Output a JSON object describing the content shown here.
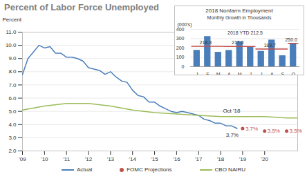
{
  "chart_data": [
    {
      "type": "line",
      "title": "Percent of Labor Force Unemployed",
      "y_label": "Percent",
      "xlim": [
        2009,
        2021.5
      ],
      "xticks": [
        {
          "value": 2009,
          "label": "'09"
        },
        {
          "value": 2010,
          "label": "'10"
        },
        {
          "value": 2011,
          "label": "'11"
        },
        {
          "value": 2012,
          "label": "'12"
        },
        {
          "value": 2013,
          "label": "'13"
        },
        {
          "value": 2014,
          "label": "'14"
        },
        {
          "value": 2015,
          "label": "'15"
        },
        {
          "value": 2016,
          "label": "'16"
        },
        {
          "value": 2017,
          "label": "'17"
        },
        {
          "value": 2018,
          "label": "'18"
        },
        {
          "value": 2019,
          "label": "'19"
        },
        {
          "value": 2020,
          "label": "'20"
        }
      ],
      "ylim": [
        2,
        11
      ],
      "yticks": [
        {
          "value": 2,
          "label": "2.0"
        },
        {
          "value": 3,
          "label": "3.0"
        },
        {
          "value": 4,
          "label": "4.0"
        },
        {
          "value": 5,
          "label": "5.0"
        },
        {
          "value": 6,
          "label": "6.0"
        },
        {
          "value": 7,
          "label": "7.0"
        },
        {
          "value": 8,
          "label": "8.0"
        },
        {
          "value": 9,
          "label": "9.0"
        },
        {
          "value": 10,
          "label": "10.0"
        },
        {
          "value": 11,
          "label": "11.0"
        }
      ],
      "grid": true,
      "legend": "bottom",
      "annotations": [
        "Oct '18",
        "3.7%"
      ],
      "series": [
        {
          "name": "Actual",
          "type": "line",
          "color": "#4a7ebb",
          "x": [
            2009,
            2009.25,
            2009.5,
            2009.75,
            2010,
            2010.25,
            2010.5,
            2010.75,
            2011,
            2011.25,
            2011.5,
            2011.75,
            2012,
            2012.25,
            2012.5,
            2012.75,
            2013,
            2013.25,
            2013.5,
            2013.75,
            2014,
            2014.25,
            2014.5,
            2014.75,
            2015,
            2015.25,
            2015.5,
            2015.75,
            2016,
            2016.25,
            2016.5,
            2016.75,
            2017,
            2017.25,
            2017.5,
            2017.75,
            2018,
            2018.25,
            2018.5,
            2018.75
          ],
          "values": [
            7.8,
            9.0,
            9.5,
            10.0,
            9.8,
            9.9,
            9.4,
            9.4,
            9.1,
            9.1,
            9.0,
            8.8,
            8.3,
            8.2,
            8.1,
            7.8,
            8.0,
            7.6,
            7.3,
            7.2,
            6.6,
            6.2,
            6.1,
            5.7,
            5.7,
            5.4,
            5.2,
            5.0,
            4.9,
            5.0,
            4.9,
            4.8,
            4.7,
            4.4,
            4.3,
            4.1,
            4.1,
            3.9,
            3.9,
            3.7
          ]
        },
        {
          "name": "FOMC Projections",
          "type": "scatter",
          "marker": "circle",
          "color": "#c0504d",
          "x": [
            2019,
            2020,
            2021
          ],
          "values": [
            3.7,
            3.5,
            3.5
          ],
          "data_labels": true,
          "value_labels": [
            "3.7%",
            "3.5%",
            "3.5%"
          ]
        },
        {
          "name": "CBO NAIRU",
          "type": "line",
          "color": "#9bbb59",
          "x": [
            2009,
            2010,
            2011,
            2012,
            2013,
            2014,
            2015,
            2016,
            2017,
            2018,
            2019,
            2020,
            2021,
            2021.5
          ],
          "values": [
            5.1,
            5.4,
            5.6,
            5.6,
            5.4,
            5.1,
            4.9,
            4.8,
            4.7,
            4.6,
            4.6,
            4.6,
            4.5,
            4.5
          ]
        }
      ]
    },
    {
      "type": "bar",
      "title": "2018 Nonfarm Employment",
      "subtitle": "Monthly Growth in Thousands",
      "y_label": "(000's)",
      "categories": [
        "J",
        "F",
        "M",
        "A",
        "M",
        "J",
        "J",
        "A",
        "S",
        "O"
      ],
      "values": [
        176,
        324,
        155,
        175,
        268,
        208,
        165,
        286,
        118,
        250
      ],
      "color": "#4a7ebb",
      "ylim": [
        0,
        400
      ],
      "yticks": [
        0,
        100,
        200,
        300,
        400
      ],
      "grid": true,
      "annotations": [
        "2018 YTD 212.5"
      ],
      "averages": {
        "color": "#c0504d",
        "values": [
          218.3,
          217.0,
          189.7,
          250.0
        ],
        "value_labels": [
          "218.3",
          "217.0",
          "189.7",
          "250.0"
        ],
        "spans": [
          [
            0,
            2
          ],
          [
            3,
            5
          ],
          [
            6,
            8
          ],
          [
            9,
            9
          ]
        ]
      }
    }
  ]
}
